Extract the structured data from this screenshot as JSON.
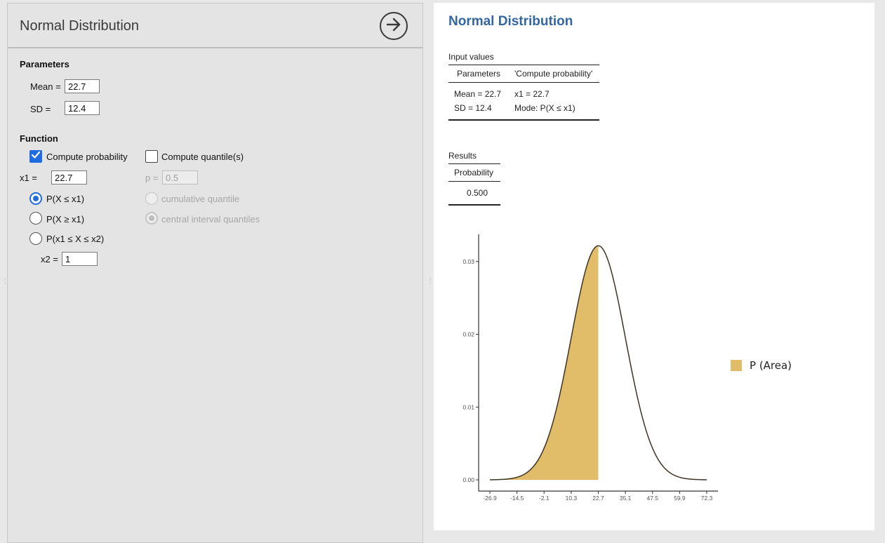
{
  "left": {
    "title": "Normal Distribution",
    "parameters": {
      "heading": "Parameters",
      "mean_label": "Mean =",
      "mean_value": "22.7",
      "sd_label": "SD =",
      "sd_value": "12.4"
    },
    "function": {
      "heading": "Function",
      "compute_probability_label": "Compute probability",
      "compute_probability_checked": true,
      "compute_quantiles_label": "Compute quantile(s)",
      "compute_quantiles_checked": false,
      "x1_label": "x1 =",
      "x1_value": "22.7",
      "p_label": "p =",
      "p_value": "0.5",
      "modes": [
        {
          "label": "P(X ≤ x1)",
          "selected": true
        },
        {
          "label": "P(X ≥ x1)",
          "selected": false
        },
        {
          "label": "P(x1 ≤ X ≤ x2)",
          "selected": false
        }
      ],
      "quantile_modes": [
        {
          "label": "cumulative quantile",
          "selected": false,
          "enabled": false
        },
        {
          "label": "central interval quantiles",
          "selected": true,
          "enabled": false
        }
      ],
      "x2_label": "x2 =",
      "x2_value": "1"
    }
  },
  "results": {
    "title": "Normal Distribution",
    "input_table": {
      "caption": "Input values",
      "headers": [
        "Parameters",
        "'Compute probability'"
      ],
      "rows": [
        [
          "Mean = 22.7",
          "x1 = 22.7"
        ],
        [
          "SD = 12.4",
          "Mode: P(X ≤ x1)"
        ]
      ]
    },
    "results_table": {
      "caption": "Results",
      "header": "Probability",
      "value": "0.500"
    }
  },
  "chart_data": {
    "type": "area",
    "distribution": "normal",
    "mean": 22.7,
    "sd": 12.4,
    "shade_upper": 22.7,
    "xlim": [
      -26.9,
      72.3
    ],
    "ylim": [
      0,
      0.0322
    ],
    "x_ticks": [
      "-26.9",
      "-14.5",
      "-2.1",
      "10.3",
      "22.7",
      "35.1",
      "47.5",
      "59.9",
      "72.3"
    ],
    "x_tick_values": [
      -26.9,
      -14.5,
      -2.1,
      10.3,
      22.7,
      35.1,
      47.5,
      59.9,
      72.3
    ],
    "y_ticks": [
      "0.00",
      "0.01",
      "0.02",
      "0.03"
    ],
    "y_tick_values": [
      0.0,
      0.01,
      0.02,
      0.03
    ],
    "legend": [
      {
        "label": "P (Area)",
        "color": "#e2bd69"
      }
    ],
    "legend_position": "right",
    "grid": false,
    "colors": {
      "fill": "#e2bd69",
      "curve": "#3d3425",
      "axis": "#333333"
    }
  },
  "colors": {
    "accent": "#1f6ce0",
    "results_title": "#3366a3"
  }
}
